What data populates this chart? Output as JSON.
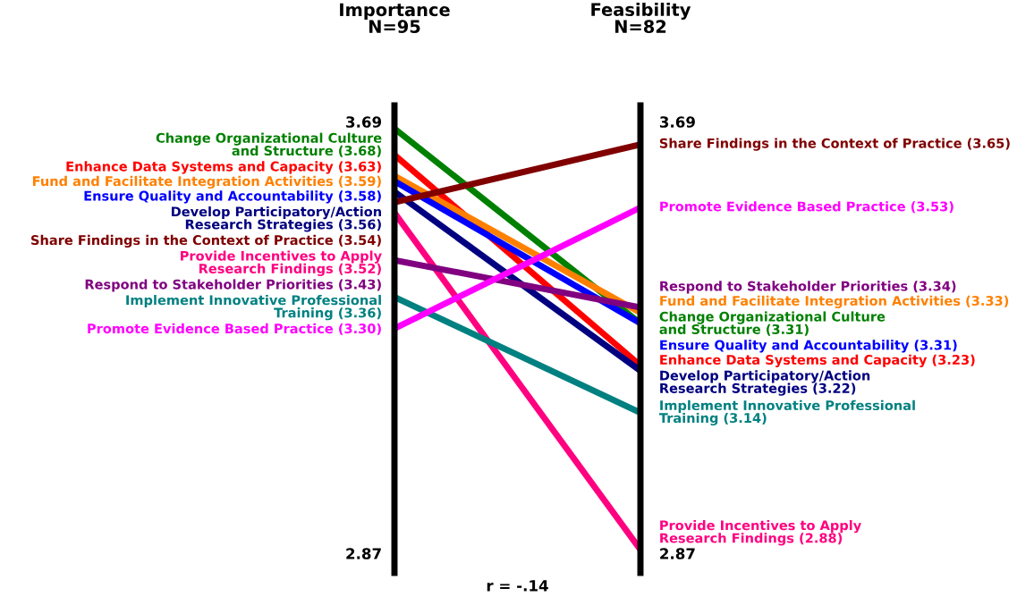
{
  "chart_data": {
    "type": "line",
    "categories": [
      "Importance\nN=95",
      "Feasibility\nN=82"
    ],
    "ylim": [
      2.87,
      3.69
    ],
    "yticks": [
      3.69,
      2.87
    ],
    "y2lim": [
      2.87,
      3.69
    ],
    "y2ticks": [
      3.69,
      2.87
    ],
    "annotations": [
      "r = -.14"
    ],
    "series": [
      {
        "name": "Change Organizational Culture\nand Structure",
        "color": "#008000",
        "values": [
          3.68,
          3.31
        ],
        "value_labels": [
          "(3.68)",
          "(3.31)"
        ]
      },
      {
        "name": "Enhance Data Systems and Capacity",
        "color": "#ff0000",
        "values": [
          3.63,
          3.23
        ],
        "value_labels": [
          "(3.63)",
          "(3.23)"
        ]
      },
      {
        "name": "Fund and Facilitate Integration Activities",
        "color": "#ff8000",
        "values": [
          3.59,
          3.33
        ],
        "value_labels": [
          "(3.59)",
          "(3.33)"
        ]
      },
      {
        "name": "Ensure Quality and Accountability",
        "color": "#0000ff",
        "values": [
          3.58,
          3.31
        ],
        "value_labels": [
          "(3.58)",
          "(3.31)"
        ]
      },
      {
        "name": "Develop Participatory/Action\nResearch Strategies",
        "color": "#000080",
        "values": [
          3.56,
          3.22
        ],
        "value_labels": [
          "(3.56)",
          "(3.22)"
        ]
      },
      {
        "name": "Share Findings in the Context of Practice",
        "color": "#800000",
        "values": [
          3.54,
          3.65
        ],
        "value_labels": [
          "(3.54)",
          "(3.65)"
        ]
      },
      {
        "name": "Provide Incentives to Apply\nResearch Findings",
        "color": "#ff0080",
        "values": [
          3.52,
          2.88
        ],
        "value_labels": [
          "(3.52)",
          "(2.88)"
        ]
      },
      {
        "name": "Respond to Stakeholder Priorities",
        "color": "#800080",
        "values": [
          3.43,
          3.34
        ],
        "value_labels": [
          "(3.43)",
          "(3.34)"
        ]
      },
      {
        "name": "Implement Innovative Professional\nTraining",
        "color": "#008080",
        "values": [
          3.36,
          3.14
        ],
        "value_labels": [
          "(3.36)",
          "(3.14)"
        ]
      },
      {
        "name": "Promote Evidence Based Practice",
        "color": "#ff00ff",
        "values": [
          3.3,
          3.53
        ],
        "value_labels": [
          "(3.30)",
          "(3.53)"
        ]
      }
    ]
  }
}
